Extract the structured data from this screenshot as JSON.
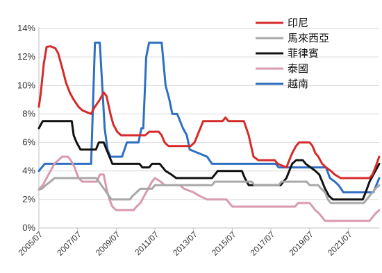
{
  "chart_data": {
    "type": "line",
    "title": "",
    "xlabel": "",
    "ylabel": "",
    "ylim": [
      0,
      14
    ],
    "y_ticks": [
      "0%",
      "2%",
      "4%",
      "6%",
      "8%",
      "10%",
      "12%",
      "14%"
    ],
    "y_tick_values": [
      0,
      2,
      4,
      6,
      8,
      10,
      12,
      14
    ],
    "x_ticks": [
      "2005/07",
      "2007/07",
      "2009/07",
      "2011/07",
      "2013/07",
      "2015/07",
      "2017/07",
      "2019/07",
      "2021/07"
    ],
    "x_tick_values": [
      2005.5,
      2007.5,
      2009.5,
      2011.5,
      2013.5,
      2015.5,
      2017.5,
      2019.5,
      2021.5
    ],
    "xlim": [
      2005.5,
      2023.1
    ],
    "grid": "horizontal",
    "legend_position": "top-right",
    "series": [
      {
        "name": "印尼",
        "color": "#d62a2a",
        "points": [
          [
            2005.5,
            8.5
          ],
          [
            2005.6,
            9.5
          ],
          [
            2005.75,
            11.5
          ],
          [
            2005.9,
            12.7
          ],
          [
            2006.1,
            12.75
          ],
          [
            2006.35,
            12.6
          ],
          [
            2006.5,
            12.25
          ],
          [
            2006.75,
            11.0
          ],
          [
            2006.9,
            10.2
          ],
          [
            2007.1,
            9.5
          ],
          [
            2007.3,
            9.0
          ],
          [
            2007.55,
            8.5
          ],
          [
            2007.75,
            8.25
          ],
          [
            2008.2,
            8.0
          ],
          [
            2008.35,
            8.4
          ],
          [
            2008.65,
            9.0
          ],
          [
            2008.85,
            9.5
          ],
          [
            2009.0,
            9.25
          ],
          [
            2009.2,
            8.0
          ],
          [
            2009.35,
            7.25
          ],
          [
            2009.55,
            6.75
          ],
          [
            2009.75,
            6.5
          ],
          [
            2011.0,
            6.5
          ],
          [
            2011.2,
            6.75
          ],
          [
            2011.7,
            6.75
          ],
          [
            2011.85,
            6.5
          ],
          [
            2012.0,
            6.0
          ],
          [
            2012.2,
            5.75
          ],
          [
            2013.35,
            5.75
          ],
          [
            2013.55,
            6.0
          ],
          [
            2013.85,
            7.0
          ],
          [
            2014.0,
            7.5
          ],
          [
            2015.0,
            7.5
          ],
          [
            2015.15,
            7.75
          ],
          [
            2015.3,
            7.5
          ],
          [
            2016.1,
            7.5
          ],
          [
            2016.35,
            6.5
          ],
          [
            2016.6,
            5.0
          ],
          [
            2016.85,
            4.75
          ],
          [
            2017.7,
            4.75
          ],
          [
            2017.85,
            4.5
          ],
          [
            2018.3,
            4.25
          ],
          [
            2018.45,
            4.75
          ],
          [
            2018.6,
            5.25
          ],
          [
            2018.8,
            5.75
          ],
          [
            2018.95,
            6.0
          ],
          [
            2019.5,
            6.0
          ],
          [
            2019.65,
            5.75
          ],
          [
            2019.8,
            5.25
          ],
          [
            2019.95,
            5.0
          ],
          [
            2020.15,
            4.5
          ],
          [
            2020.35,
            4.25
          ],
          [
            2020.6,
            4.0
          ],
          [
            2020.8,
            3.75
          ],
          [
            2021.1,
            3.5
          ],
          [
            2022.6,
            3.5
          ],
          [
            2022.75,
            3.75
          ],
          [
            2022.9,
            4.25
          ],
          [
            2023.1,
            5.0
          ]
        ]
      },
      {
        "name": "馬來西亞",
        "color": "#a8a8a8",
        "points": [
          [
            2005.5,
            2.7
          ],
          [
            2005.65,
            2.75
          ],
          [
            2005.85,
            3.0
          ],
          [
            2006.1,
            3.25
          ],
          [
            2006.3,
            3.5
          ],
          [
            2008.45,
            3.5
          ],
          [
            2008.6,
            3.25
          ],
          [
            2009.0,
            2.5
          ],
          [
            2009.25,
            2.0
          ],
          [
            2010.2,
            2.0
          ],
          [
            2010.35,
            2.25
          ],
          [
            2010.55,
            2.5
          ],
          [
            2010.75,
            2.75
          ],
          [
            2011.35,
            2.75
          ],
          [
            2011.5,
            3.0
          ],
          [
            2014.45,
            3.0
          ],
          [
            2014.6,
            3.25
          ],
          [
            2016.5,
            3.25
          ],
          [
            2016.65,
            3.0
          ],
          [
            2017.9,
            3.0
          ],
          [
            2018.05,
            3.25
          ],
          [
            2019.35,
            3.25
          ],
          [
            2019.5,
            3.0
          ],
          [
            2019.95,
            3.0
          ],
          [
            2020.1,
            2.75
          ],
          [
            2020.3,
            2.5
          ],
          [
            2020.45,
            2.0
          ],
          [
            2020.6,
            1.75
          ],
          [
            2022.3,
            1.75
          ],
          [
            2022.45,
            2.0
          ],
          [
            2022.6,
            2.25
          ],
          [
            2022.75,
            2.5
          ],
          [
            2022.9,
            2.75
          ],
          [
            2023.1,
            3.0
          ]
        ]
      },
      {
        "name": "菲律賓",
        "color": "#111111",
        "points": [
          [
            2005.5,
            7.0
          ],
          [
            2005.7,
            7.5
          ],
          [
            2007.2,
            7.5
          ],
          [
            2007.3,
            6.5
          ],
          [
            2007.45,
            6.0
          ],
          [
            2007.65,
            5.5
          ],
          [
            2008.45,
            5.5
          ],
          [
            2008.6,
            6.0
          ],
          [
            2008.85,
            6.0
          ],
          [
            2009.0,
            5.5
          ],
          [
            2009.15,
            5.0
          ],
          [
            2009.3,
            4.5
          ],
          [
            2010.7,
            4.5
          ],
          [
            2010.85,
            4.25
          ],
          [
            2011.2,
            4.25
          ],
          [
            2011.35,
            4.5
          ],
          [
            2011.75,
            4.5
          ],
          [
            2011.9,
            4.25
          ],
          [
            2012.05,
            4.0
          ],
          [
            2012.35,
            3.75
          ],
          [
            2012.6,
            3.5
          ],
          [
            2014.45,
            3.5
          ],
          [
            2014.6,
            3.75
          ],
          [
            2014.75,
            4.0
          ],
          [
            2016.0,
            4.0
          ],
          [
            2016.15,
            3.5
          ],
          [
            2016.35,
            3.0
          ],
          [
            2018.0,
            3.0
          ],
          [
            2018.15,
            3.25
          ],
          [
            2018.3,
            3.5
          ],
          [
            2018.45,
            4.0
          ],
          [
            2018.6,
            4.5
          ],
          [
            2018.8,
            4.75
          ],
          [
            2019.15,
            4.75
          ],
          [
            2019.3,
            4.5
          ],
          [
            2019.55,
            4.25
          ],
          [
            2019.8,
            4.0
          ],
          [
            2020.0,
            3.75
          ],
          [
            2020.15,
            3.25
          ],
          [
            2020.3,
            2.75
          ],
          [
            2020.5,
            2.25
          ],
          [
            2020.7,
            2.0
          ],
          [
            2022.25,
            2.0
          ],
          [
            2022.4,
            2.5
          ],
          [
            2022.6,
            3.25
          ],
          [
            2022.8,
            3.75
          ],
          [
            2023.0,
            4.25
          ],
          [
            2023.1,
            4.5
          ]
        ]
      },
      {
        "name": "泰國",
        "color": "#d89aae",
        "points": [
          [
            2005.5,
            2.7
          ],
          [
            2005.7,
            3.0
          ],
          [
            2005.9,
            3.5
          ],
          [
            2006.1,
            4.0
          ],
          [
            2006.3,
            4.5
          ],
          [
            2006.5,
            4.75
          ],
          [
            2006.7,
            5.0
          ],
          [
            2007.0,
            5.0
          ],
          [
            2007.15,
            4.75
          ],
          [
            2007.35,
            4.25
          ],
          [
            2007.55,
            3.5
          ],
          [
            2007.75,
            3.25
          ],
          [
            2008.5,
            3.25
          ],
          [
            2008.65,
            3.75
          ],
          [
            2008.85,
            3.75
          ],
          [
            2009.0,
            2.75
          ],
          [
            2009.15,
            2.0
          ],
          [
            2009.3,
            1.5
          ],
          [
            2009.5,
            1.25
          ],
          [
            2010.4,
            1.25
          ],
          [
            2010.55,
            1.5
          ],
          [
            2010.75,
            1.75
          ],
          [
            2010.95,
            2.25
          ],
          [
            2011.15,
            2.75
          ],
          [
            2011.35,
            3.25
          ],
          [
            2011.5,
            3.5
          ],
          [
            2011.8,
            3.25
          ],
          [
            2012.0,
            3.0
          ],
          [
            2012.8,
            3.0
          ],
          [
            2013.0,
            2.75
          ],
          [
            2013.5,
            2.5
          ],
          [
            2013.8,
            2.25
          ],
          [
            2014.2,
            2.0
          ],
          [
            2015.2,
            2.0
          ],
          [
            2015.35,
            1.75
          ],
          [
            2015.5,
            1.5
          ],
          [
            2018.75,
            1.5
          ],
          [
            2018.9,
            1.75
          ],
          [
            2019.5,
            1.75
          ],
          [
            2019.65,
            1.5
          ],
          [
            2019.8,
            1.25
          ],
          [
            2020.0,
            1.0
          ],
          [
            2020.15,
            0.75
          ],
          [
            2020.3,
            0.5
          ],
          [
            2022.6,
            0.5
          ],
          [
            2022.75,
            0.75
          ],
          [
            2022.9,
            1.0
          ],
          [
            2023.1,
            1.25
          ]
        ]
      },
      {
        "name": "越南",
        "color": "#2e6fc2",
        "points": [
          [
            2005.5,
            4.0
          ],
          [
            2005.8,
            4.5
          ],
          [
            2008.2,
            4.5
          ],
          [
            2008.4,
            13.0
          ],
          [
            2008.65,
            13.0
          ],
          [
            2008.9,
            7.0
          ],
          [
            2009.05,
            5.5
          ],
          [
            2009.2,
            5.0
          ],
          [
            2009.8,
            5.0
          ],
          [
            2010.05,
            6.0
          ],
          [
            2010.65,
            6.0
          ],
          [
            2010.8,
            7.0
          ],
          [
            2010.9,
            7.0
          ],
          [
            2011.05,
            12.0
          ],
          [
            2011.2,
            13.0
          ],
          [
            2011.85,
            13.0
          ],
          [
            2012.05,
            10.0
          ],
          [
            2012.25,
            9.0
          ],
          [
            2012.4,
            8.0
          ],
          [
            2012.65,
            8.0
          ],
          [
            2012.95,
            7.0
          ],
          [
            2013.15,
            6.5
          ],
          [
            2013.3,
            5.5
          ],
          [
            2014.2,
            5.0
          ],
          [
            2014.45,
            4.5
          ],
          [
            2017.75,
            4.5
          ],
          [
            2017.9,
            4.25
          ],
          [
            2020.35,
            4.25
          ],
          [
            2020.55,
            3.5
          ],
          [
            2020.8,
            3.25
          ],
          [
            2021.0,
            3.0
          ],
          [
            2021.25,
            2.5
          ],
          [
            2022.8,
            2.5
          ],
          [
            2022.95,
            3.0
          ],
          [
            2023.1,
            3.5
          ]
        ]
      }
    ]
  }
}
